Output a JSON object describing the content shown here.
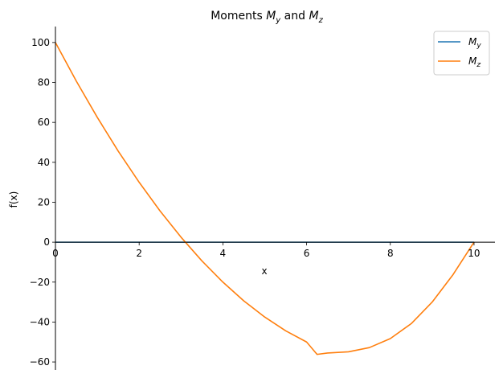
{
  "chart_data": {
    "type": "line",
    "title": {
      "prefix": "Moments ",
      "var1": "M",
      "var1_sub": "y",
      "middle": " and ",
      "var2": "M",
      "var2_sub": "z"
    },
    "xlabel": "x",
    "ylabel": "f(x)",
    "xlim": [
      0,
      10.5
    ],
    "ylim": [
      -64,
      108
    ],
    "x_ticks": [
      0,
      2,
      4,
      6,
      8,
      10
    ],
    "y_ticks": [
      -60,
      -40,
      -20,
      0,
      20,
      40,
      60,
      80,
      100
    ],
    "grid": false,
    "legend_position": "top-right",
    "series": [
      {
        "name_base": "M",
        "name_sub": "y",
        "color": "#1f77b4",
        "x": [
          0,
          10
        ],
        "y": [
          0,
          0
        ]
      },
      {
        "name_base": "M",
        "name_sub": "z",
        "color": "#ff7f0e",
        "x": [
          0,
          0.5,
          1,
          1.5,
          2,
          2.5,
          3,
          3.5,
          4,
          4.5,
          5,
          5.5,
          6,
          6.25,
          6.5,
          7,
          7.5,
          8,
          8.5,
          9,
          9.5,
          10
        ],
        "y": [
          100,
          80.6,
          62.5,
          45.6,
          30,
          15.6,
          2.5,
          -9.4,
          -20,
          -29.4,
          -37.5,
          -44.4,
          -50,
          -56.2,
          -55.5,
          -54.9,
          -52.8,
          -48.3,
          -40.8,
          -30,
          -16.2,
          0
        ]
      }
    ]
  }
}
